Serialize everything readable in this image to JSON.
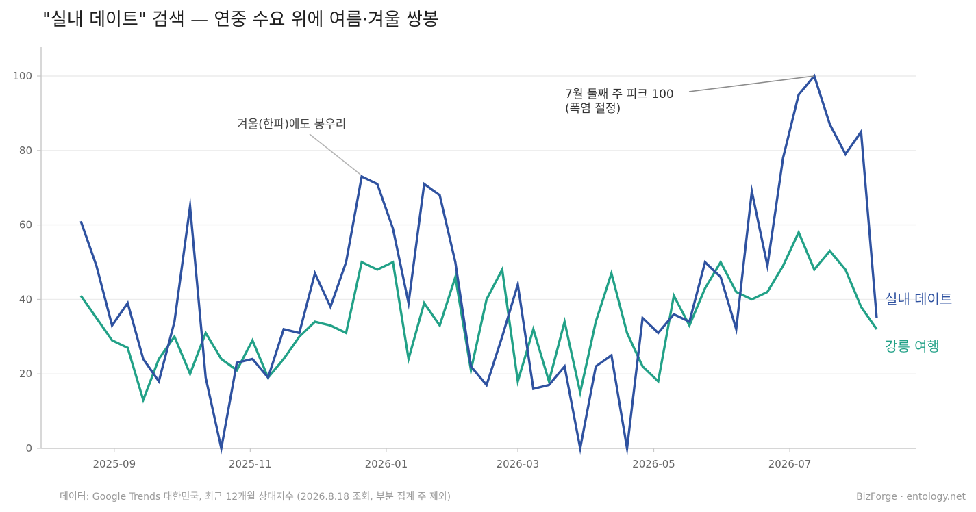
{
  "chart_data": {
    "type": "line",
    "title": "\"실내 데이트\" 검색 — 연중 수요 위에 여름·겨울 쌍봉",
    "ylim": [
      0,
      100
    ],
    "y_ticks": [
      0,
      20,
      40,
      60,
      80,
      100
    ],
    "x_ticks": [
      "2025-09",
      "2025-11",
      "2026-01",
      "2026-03",
      "2026-05",
      "2026-07"
    ],
    "x_tick_dates": [
      "2025-09-01",
      "2025-11-01",
      "2026-01-01",
      "2026-03-01",
      "2026-05-01",
      "2026-07-01"
    ],
    "grid": "horizontal",
    "legend": "direct labels at right end of lines",
    "dates": [
      "2025-08-17",
      "2025-08-24",
      "2025-08-31",
      "2025-09-07",
      "2025-09-14",
      "2025-09-21",
      "2025-09-28",
      "2025-10-05",
      "2025-10-12",
      "2025-10-19",
      "2025-10-26",
      "2025-11-02",
      "2025-11-09",
      "2025-11-16",
      "2025-11-23",
      "2025-11-30",
      "2025-12-07",
      "2025-12-14",
      "2025-12-21",
      "2025-12-28",
      "2026-01-04",
      "2026-01-11",
      "2026-01-18",
      "2026-01-25",
      "2026-02-01",
      "2026-02-08",
      "2026-02-15",
      "2026-02-22",
      "2026-03-01",
      "2026-03-08",
      "2026-03-15",
      "2026-03-22",
      "2026-03-29",
      "2026-04-05",
      "2026-04-12",
      "2026-04-19",
      "2026-04-26",
      "2026-05-03",
      "2026-05-10",
      "2026-05-17",
      "2026-05-24",
      "2026-05-31",
      "2026-06-07",
      "2026-06-14",
      "2026-06-21",
      "2026-06-28",
      "2026-07-05",
      "2026-07-12",
      "2026-07-19",
      "2026-07-26",
      "2026-08-02",
      "2026-08-09"
    ],
    "series": [
      {
        "name": "실내 데이트",
        "color": "#2f52a0",
        "values": [
          61,
          49,
          33,
          39,
          24,
          18,
          34,
          65,
          19,
          0,
          23,
          24,
          19,
          32,
          31,
          47,
          38,
          50,
          73,
          71,
          59,
          39,
          71,
          68,
          50,
          22,
          17,
          30,
          44,
          16,
          17,
          22,
          0,
          22,
          25,
          0,
          35,
          31,
          36,
          34,
          50,
          46,
          32,
          69,
          49,
          78,
          95,
          100,
          87,
          79,
          85,
          35
        ]
      },
      {
        "name": "강릉 여행",
        "color": "#22a187",
        "values": [
          41,
          35,
          29,
          27,
          13,
          24,
          30,
          20,
          31,
          24,
          21,
          29,
          19,
          24,
          30,
          34,
          33,
          31,
          50,
          48,
          50,
          24,
          39,
          33,
          46,
          21,
          40,
          48,
          18,
          32,
          18,
          34,
          15,
          34,
          47,
          31,
          22,
          18,
          41,
          33,
          43,
          50,
          42,
          40,
          42,
          49,
          58,
          48,
          53,
          48,
          38,
          32
        ]
      }
    ],
    "annotations": [
      {
        "text_lines": [
          "7월 둘째 주 피크 100",
          "(폭염 절정)"
        ],
        "date": "2026-07-12",
        "value": 100,
        "series": "실내 데이트"
      },
      {
        "text_lines": [
          "겨울(한파)에도 봉우리"
        ],
        "date": "2025-12-21",
        "value": 73,
        "series": "실내 데이트"
      }
    ],
    "source_note": "데이터: Google Trends 대한민국, 최근 12개월 상대지수 (2026.8.18 조회, 부분 집계 주 제외)",
    "credit": "BizForge · entology.net"
  },
  "colors": {
    "series_1": "#2f52a0",
    "series_2": "#22a187",
    "grid": "#ececec",
    "axis": "#c8c8c8",
    "annotation_line_1": "#8c8c8c",
    "annotation_line_2": "#b4b4b4"
  }
}
